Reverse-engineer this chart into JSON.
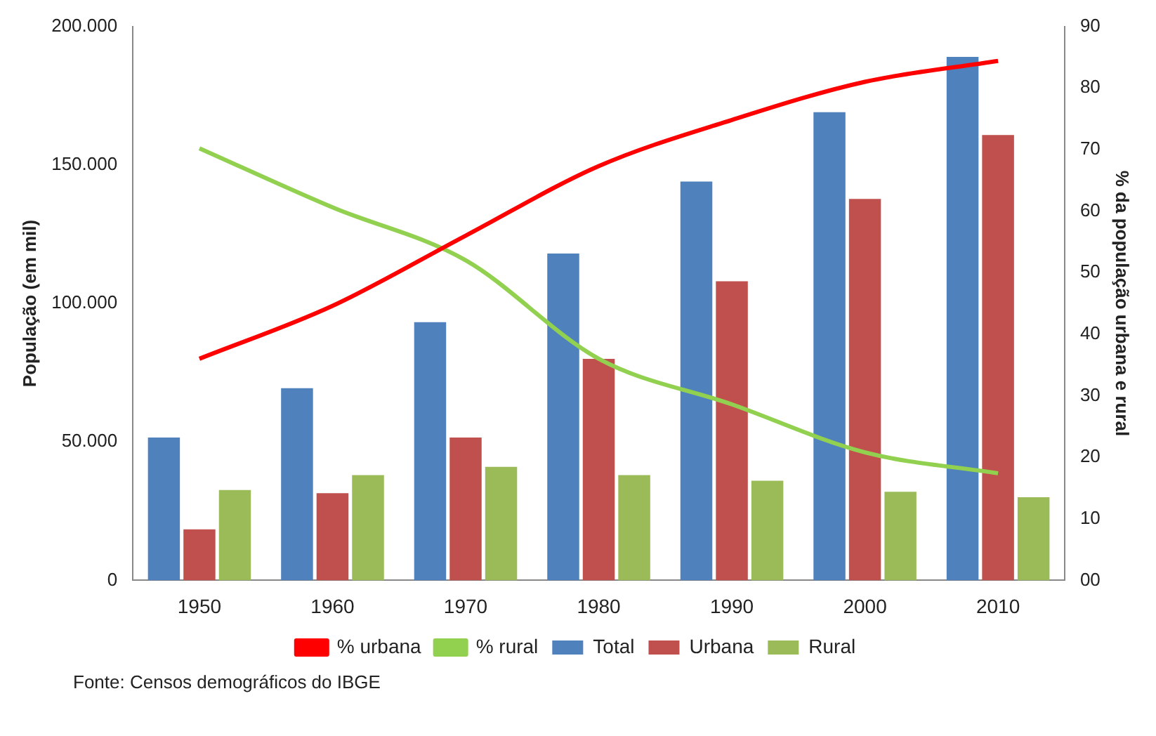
{
  "chart_data": {
    "type": "bar",
    "ylabel": "População (em mil)",
    "y2label": "% da população urbana e rural",
    "categories": [
      "1950",
      "1960",
      "1970",
      "1980",
      "1990",
      "2000",
      "2010"
    ],
    "series": [
      {
        "name": "Total",
        "color": "#4f81bd",
        "values": [
          51600,
          69400,
          93200,
          118000,
          144000,
          169000,
          189000
        ]
      },
      {
        "name": "Urbana",
        "color": "#c0504d",
        "values": [
          18400,
          31500,
          51600,
          80000,
          108000,
          137700,
          160800
        ]
      },
      {
        "name": "Rural",
        "color": "#9bbb59",
        "values": [
          32600,
          38000,
          41000,
          38000,
          36000,
          32000,
          30000
        ]
      },
      {
        "name": "% urbana",
        "type": "line",
        "axis": "y2",
        "color": "#ff0000",
        "values": [
          36,
          44.6,
          56,
          67.3,
          74.8,
          81,
          84.4
        ]
      },
      {
        "name": "% rural",
        "type": "line",
        "axis": "y2",
        "color": "#92d050",
        "values": [
          70.2,
          60.6,
          52,
          36,
          28.6,
          20.8,
          17.4
        ]
      }
    ],
    "ylim": [
      0,
      200000
    ],
    "yticks": [
      0,
      {
        "value": 50000,
        "label": "50.000"
      },
      {
        "value": 100000,
        "label": "100.000"
      },
      {
        "value": 150000,
        "label": "150.000"
      },
      {
        "value": 200000,
        "label": "200.000"
      }
    ],
    "y2lim": [
      0,
      90
    ],
    "y2ticks": [
      {
        "value": 0,
        "label": "00"
      },
      10,
      20,
      30,
      40,
      50,
      60,
      70,
      80,
      90
    ],
    "grid": false,
    "legend": "bottom",
    "marker": "none",
    "annotations": [
      "Fonte: Censos demográficos do IBGE"
    ]
  }
}
